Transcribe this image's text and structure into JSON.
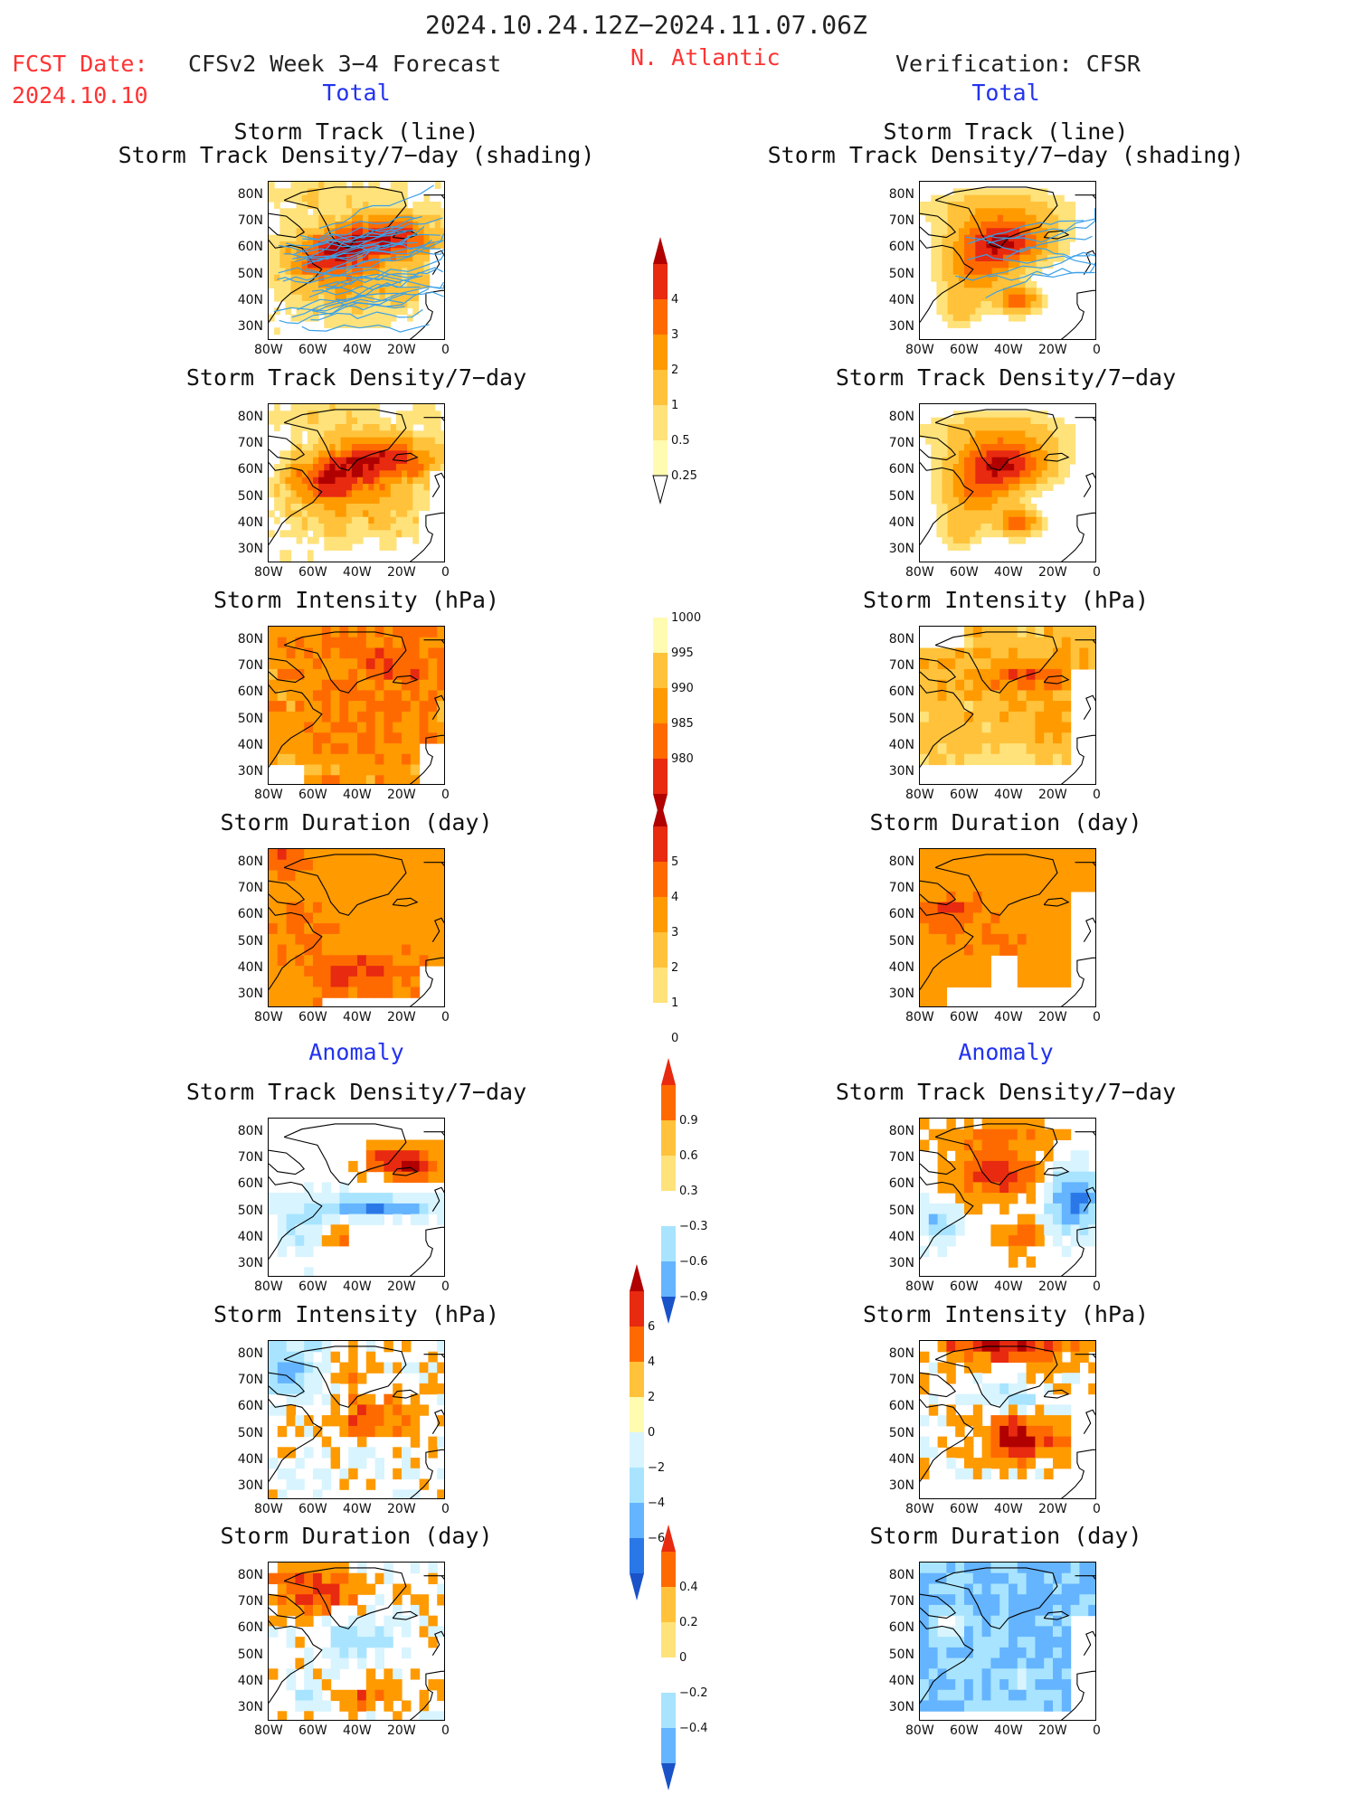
{
  "header": {
    "period": "2024.10.24.12Z−2024.11.07.06Z",
    "fcst_label": "FCST Date:",
    "fcst_date": "2024.10.10",
    "model": "CFSv2 Week 3−4 Forecast",
    "region": "N. Atlantic",
    "verification": "Verification: CFSR"
  },
  "sections": {
    "total": "Total",
    "anomaly": "Anomaly"
  },
  "panel_titles": {
    "track_line": "Storm Track (line)",
    "track_density_shading": "Storm Track Density/7−day (shading)",
    "track_density": "Storm Track Density/7−day",
    "intensity": "Storm Intensity (hPa)",
    "duration": "Storm Duration (day)"
  },
  "axes": {
    "lat_ticks": [
      "80N",
      "70N",
      "60N",
      "50N",
      "40N",
      "30N"
    ],
    "lon_ticks": [
      "80W",
      "60W",
      "40W",
      "20W",
      "0"
    ]
  },
  "colors": {
    "warm": [
      "#fffbb0",
      "#ffe27a",
      "#ffc23a",
      "#ff9a00",
      "#ff6a00",
      "#e82a10",
      "#b00000"
    ],
    "cool": [
      "#d8f4ff",
      "#a8e4ff",
      "#64b4ff",
      "#2a78e8",
      "#1a52c8"
    ],
    "track_line": "#3aa0e8",
    "coast": "#000000"
  },
  "chart_data": [
    {
      "type": "heatmap",
      "column": "forecast",
      "group": "total",
      "title": "Storm Track (line) / Storm Track Density/7−day (shading)",
      "overlay": "storm tracks"
    },
    {
      "type": "heatmap",
      "column": "verification",
      "group": "total",
      "title": "Storm Track (line) / Storm Track Density/7−day (shading)",
      "overlay": "storm tracks"
    },
    {
      "type": "heatmap",
      "column": "forecast",
      "group": "total",
      "title": "Storm Track Density/7−day"
    },
    {
      "type": "heatmap",
      "column": "verification",
      "group": "total",
      "title": "Storm Track Density/7−day"
    },
    {
      "type": "heatmap",
      "column": "forecast",
      "group": "total",
      "title": "Storm Intensity (hPa)"
    },
    {
      "type": "heatmap",
      "column": "verification",
      "group": "total",
      "title": "Storm Intensity (hPa)"
    },
    {
      "type": "heatmap",
      "column": "forecast",
      "group": "total",
      "title": "Storm Duration (day)"
    },
    {
      "type": "heatmap",
      "column": "verification",
      "group": "total",
      "title": "Storm Duration (day)"
    },
    {
      "type": "heatmap",
      "column": "forecast",
      "group": "anomaly",
      "title": "Storm Track Density/7−day"
    },
    {
      "type": "heatmap",
      "column": "verification",
      "group": "anomaly",
      "title": "Storm Track Density/7−day"
    },
    {
      "type": "heatmap",
      "column": "forecast",
      "group": "anomaly",
      "title": "Storm Intensity (hPa)"
    },
    {
      "type": "heatmap",
      "column": "verification",
      "group": "anomaly",
      "title": "Storm Intensity (hPa)"
    },
    {
      "type": "heatmap",
      "column": "forecast",
      "group": "anomaly",
      "title": "Storm Duration (day)"
    },
    {
      "type": "heatmap",
      "column": "verification",
      "group": "anomaly",
      "title": "Storm Duration (day)"
    }
  ],
  "colorbars": {
    "density": {
      "labels": [
        "4",
        "3",
        "2",
        "1",
        "0.5",
        "0.25"
      ]
    },
    "intensity": {
      "labels": [
        "1000",
        "995",
        "990",
        "985",
        "980"
      ]
    },
    "duration": {
      "labels": [
        "5",
        "4",
        "3",
        "2",
        "1",
        "0"
      ]
    },
    "anom_density": {
      "labels": [
        "0.9",
        "0.6",
        "0.3",
        "−0.3",
        "−0.6",
        "−0.9"
      ]
    },
    "anom_intensity": {
      "labels": [
        "6",
        "4",
        "2",
        "0",
        "−2",
        "−4",
        "−6"
      ]
    },
    "anom_duration": {
      "labels": [
        "0.4",
        "0.2",
        "0",
        "−0.2",
        "−0.4"
      ]
    }
  }
}
